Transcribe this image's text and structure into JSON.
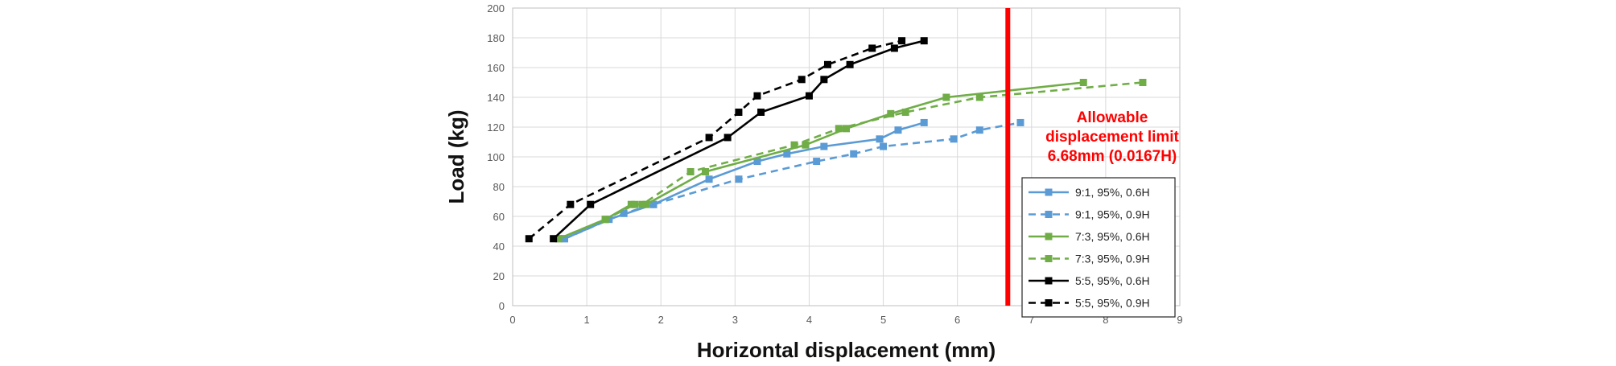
{
  "chart_data": {
    "type": "line",
    "title": "",
    "xlabel": "Horizontal displacement (mm)",
    "ylabel": "Load (kg)",
    "xlim": [
      0,
      9
    ],
    "ylim": [
      0,
      200
    ],
    "x_ticks": [
      "0",
      "1",
      "2",
      "3",
      "4",
      "5",
      "6",
      "7",
      "8",
      "9"
    ],
    "y_ticks": [
      "0",
      "20",
      "40",
      "60",
      "80",
      "100",
      "120",
      "140",
      "160",
      "180",
      "200"
    ],
    "grid": true,
    "legend_position": "bottom-right",
    "series": [
      {
        "name": "9:1, 95%, 0.6H",
        "color": "#5b9bd5",
        "dash": "solid",
        "x": [
          0.7,
          1.3,
          1.9,
          2.65,
          3.3,
          3.7,
          4.2,
          4.95,
          5.2,
          5.55
        ],
        "y": [
          45,
          58,
          68,
          85,
          97,
          102,
          107,
          112,
          118,
          123
        ]
      },
      {
        "name": "9:1, 95%, 0.9H",
        "color": "#5b9bd5",
        "dash": "dashed",
        "x": [
          0.7,
          1.5,
          1.9,
          3.05,
          4.1,
          4.6,
          5.0,
          5.95,
          6.3,
          6.85
        ],
        "y": [
          45,
          62,
          68,
          85,
          97,
          102,
          107,
          112,
          118,
          123
        ]
      },
      {
        "name": "7:3, 95%, 0.6H",
        "color": "#70ad47",
        "dash": "solid",
        "x": [
          0.62,
          1.25,
          1.6,
          1.8,
          2.6,
          3.95,
          4.5,
          5.1,
          5.85,
          7.7
        ],
        "y": [
          45,
          58,
          68,
          68,
          90,
          108,
          119,
          129,
          140,
          150
        ]
      },
      {
        "name": "7:3, 95%, 0.9H",
        "color": "#70ad47",
        "dash": "dashed",
        "x": [
          0.62,
          1.25,
          1.65,
          1.75,
          2.4,
          3.8,
          4.4,
          5.3,
          6.3,
          8.5
        ],
        "y": [
          45,
          58,
          68,
          68,
          90,
          108,
          119,
          130,
          140,
          150
        ]
      },
      {
        "name": "5:5, 95%, 0.6H",
        "color": "#000000",
        "dash": "solid",
        "x": [
          0.55,
          1.05,
          2.9,
          3.35,
          4.0,
          4.2,
          4.55,
          5.15,
          5.55
        ],
        "y": [
          45,
          68,
          113,
          130,
          141,
          152,
          162,
          173,
          178
        ]
      },
      {
        "name": "5:5, 95%, 0.9H",
        "color": "#000000",
        "dash": "dashed",
        "x": [
          0.22,
          0.78,
          2.65,
          3.05,
          3.3,
          3.9,
          4.25,
          4.85,
          5.25
        ],
        "y": [
          45,
          68,
          113,
          130,
          141,
          152,
          162,
          173,
          178
        ]
      }
    ],
    "annotation": {
      "lines": [
        "Allowable",
        "displacement limit",
        "6.68mm (0.0167H)"
      ],
      "x_value": 6.68,
      "color": "#ff0000"
    }
  }
}
